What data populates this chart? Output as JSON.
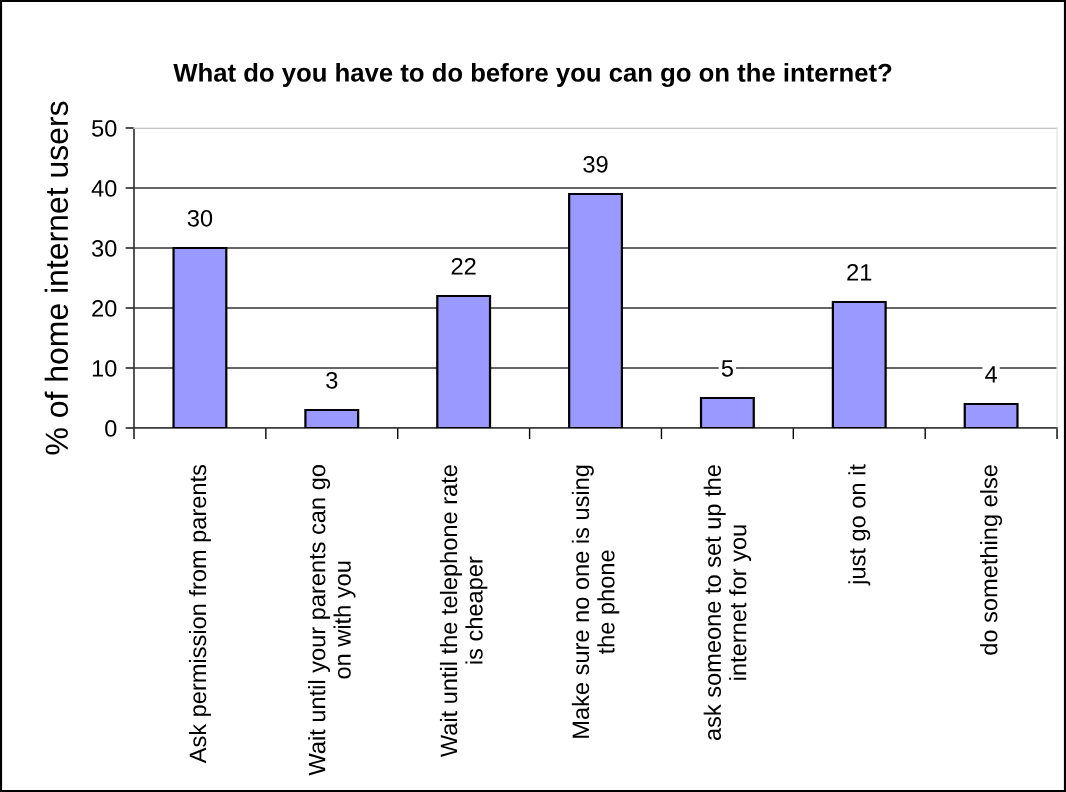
{
  "chart_data": {
    "type": "bar",
    "title": "What do you have to do before you can go on the internet?",
    "ylabel": "% of home internet users",
    "categories": [
      "Ask permission from parents",
      "Wait until your parents can go\non with you",
      "Wait until the telephone rate\nis cheaper",
      "Make sure no one is using\nthe phone",
      "ask someone to set up the\ninternet for you",
      "just go on it",
      "do something else"
    ],
    "values": [
      30,
      3,
      22,
      39,
      5,
      21,
      4
    ],
    "color": "#9999ff",
    "ylim": [
      0,
      50
    ],
    "yticks": [
      0,
      10,
      20,
      30,
      40,
      50
    ],
    "grid": "y",
    "data_labels": true
  }
}
